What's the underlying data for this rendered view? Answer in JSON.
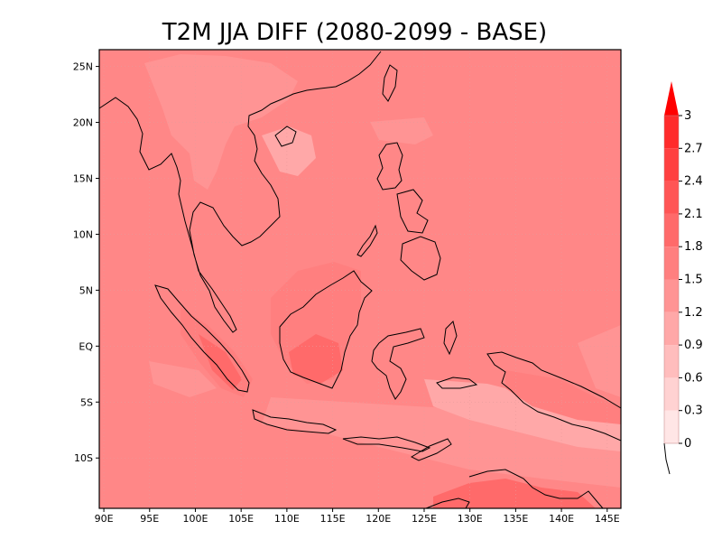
{
  "title": "T2M JJA DIFF (2080-2099 - BASE)",
  "map": {
    "lon_range": [
      89.5,
      146.5
    ],
    "lat_range": [
      -14.5,
      26.5
    ],
    "x_ticks": [
      {
        "value": 90,
        "label": "90E"
      },
      {
        "value": 95,
        "label": "95E"
      },
      {
        "value": 100,
        "label": "100E"
      },
      {
        "value": 105,
        "label": "105E"
      },
      {
        "value": 110,
        "label": "110E"
      },
      {
        "value": 115,
        "label": "115E"
      },
      {
        "value": 120,
        "label": "120E"
      },
      {
        "value": 125,
        "label": "125E"
      },
      {
        "value": 130,
        "label": "130E"
      },
      {
        "value": 135,
        "label": "135E"
      },
      {
        "value": 140,
        "label": "140E"
      },
      {
        "value": 145,
        "label": "145E"
      }
    ],
    "y_ticks": [
      {
        "value": 25,
        "label": "25N"
      },
      {
        "value": 20,
        "label": "20N"
      },
      {
        "value": 15,
        "label": "15N"
      },
      {
        "value": 10,
        "label": "10N"
      },
      {
        "value": 5,
        "label": "5N"
      },
      {
        "value": 0,
        "label": "EQ"
      },
      {
        "value": -5,
        "label": "5S"
      },
      {
        "value": -10,
        "label": "10S"
      }
    ],
    "background_color": "#ff8787",
    "coastline_color": "#000000"
  },
  "colorbar": {
    "levels": [
      {
        "label": "0",
        "color": "#ffe6e6"
      },
      {
        "label": "0.3",
        "color": "#ffd2d2"
      },
      {
        "label": "0.6",
        "color": "#ffbdbd"
      },
      {
        "label": "0.9",
        "color": "#ffa8a8"
      },
      {
        "label": "1.2",
        "color": "#ff9494"
      },
      {
        "label": "1.5",
        "color": "#ff7f7f"
      },
      {
        "label": "1.8",
        "color": "#ff6a6a"
      },
      {
        "label": "2.1",
        "color": "#ff5555"
      },
      {
        "label": "2.4",
        "color": "#ff4040"
      },
      {
        "label": "2.7",
        "color": "#ff2b2b"
      },
      {
        "label": "3",
        "color": "#ff1515"
      }
    ],
    "over_color": "#ff0000"
  }
}
